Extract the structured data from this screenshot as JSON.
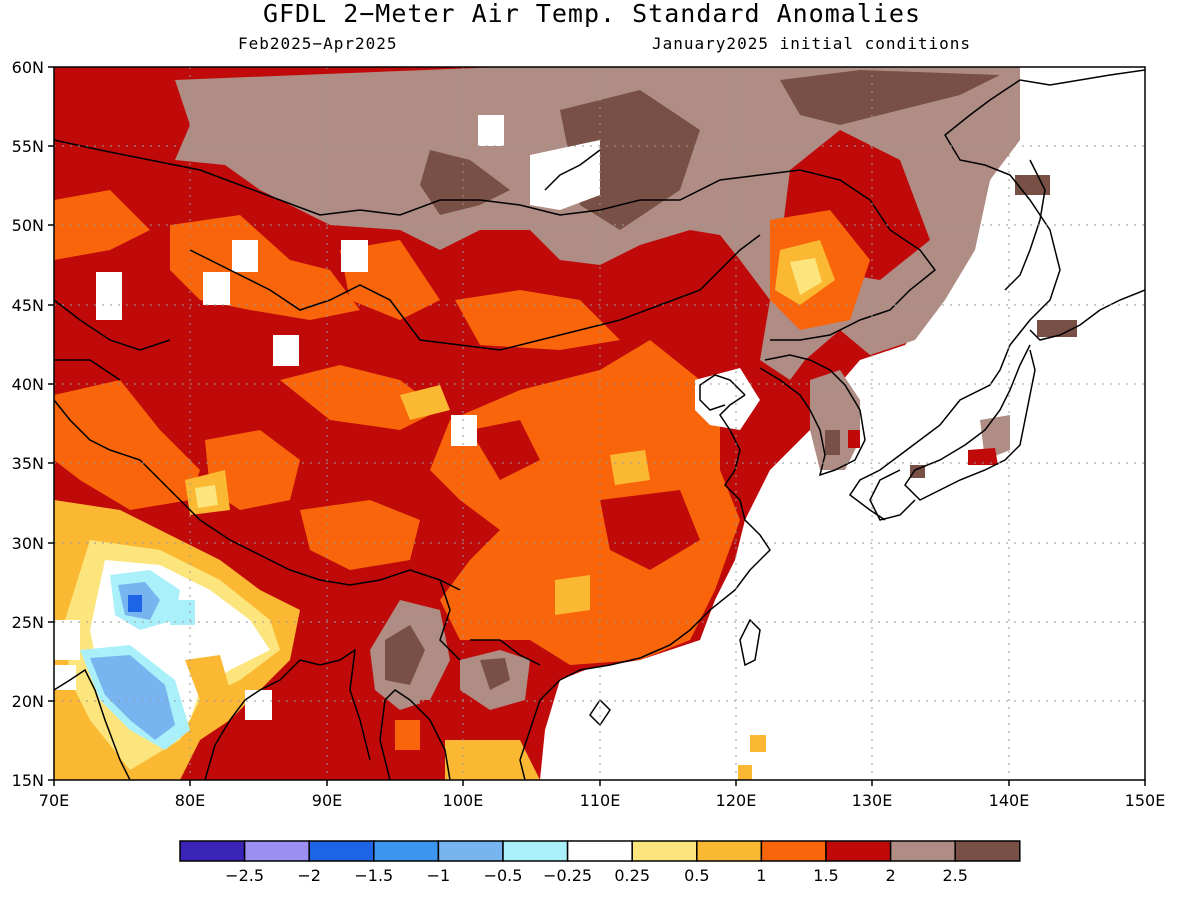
{
  "title": "GFDL 2−Meter Air Temp. Standard Anomalies",
  "subtitle_left": "Feb2025−Apr2025",
  "subtitle_right": "January2025 initial conditions",
  "lat_labels": [
    "60N",
    "55N",
    "50N",
    "45N",
    "40N",
    "35N",
    "30N",
    "25N",
    "20N",
    "15N"
  ],
  "lon_labels": [
    "70E",
    "80E",
    "90E",
    "100E",
    "110E",
    "120E",
    "130E",
    "140E",
    "150E"
  ],
  "colorbar": {
    "colors": [
      "#3a24b8",
      "#9c8ff2",
      "#1e64e6",
      "#3c96f0",
      "#78b4f0",
      "#aaf0fa",
      "#ffffff",
      "#fce57d",
      "#fbb933",
      "#f9650a",
      "#c00a0a",
      "#af8d84",
      "#785046"
    ],
    "tick_labels": [
      "−2.5",
      "−2",
      "−1.5",
      "−1",
      "−0.5",
      "−0.25",
      "0.25",
      "0.5",
      "1",
      "1.5",
      "2",
      "2.5"
    ]
  },
  "legend_colors": {
    "below_neg2_5": "#3a24b8",
    "neg2_5_to_neg2": "#9c8ff2",
    "neg2_to_neg1_5": "#1e64e6",
    "neg1_5_to_neg1": "#3c96f0",
    "neg1_to_neg0_5": "#78b4f0",
    "neg0_5_to_neg0_25": "#aaf0fa",
    "near_zero": "#ffffff",
    "p0_25_to_0_5": "#fce57d",
    "p0_5_to_1": "#fbb933",
    "p1_to_1_5": "#f9650a",
    "p1_5_to_2": "#c00a0a",
    "p2_to_2_5": "#af8d84",
    "above_2_5": "#785046"
  }
}
